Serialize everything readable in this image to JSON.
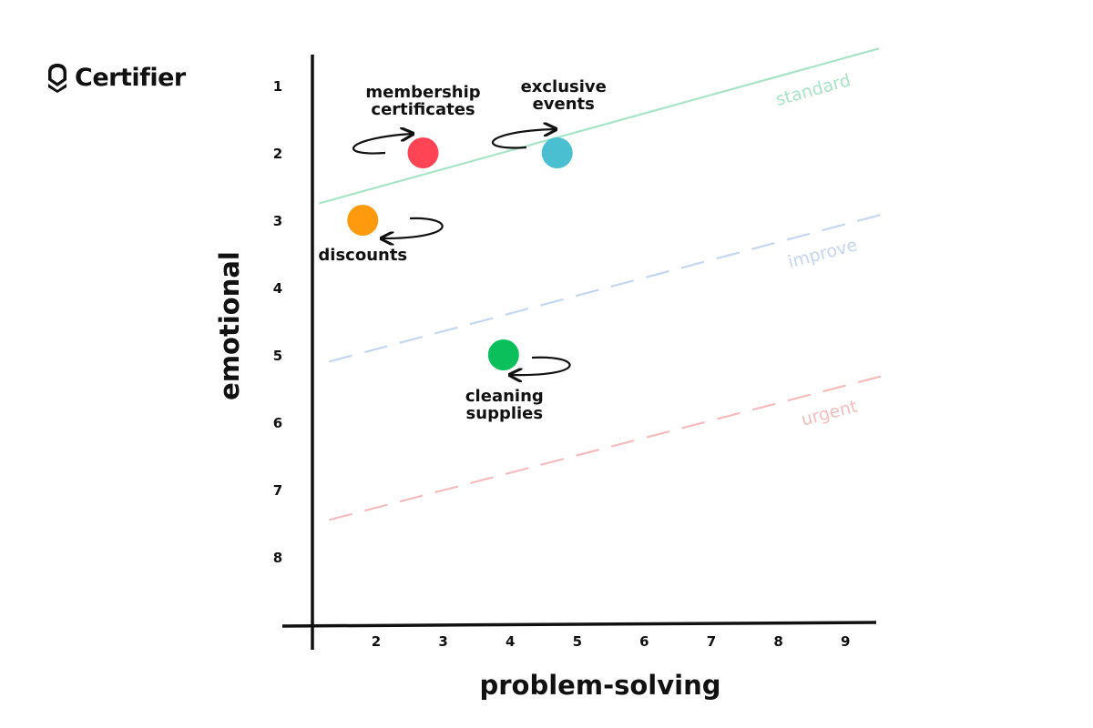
{
  "brand": {
    "name": "Certifier",
    "icon": "shield-icon"
  },
  "chart_data": {
    "type": "scatter",
    "xlabel": "problem-solving",
    "ylabel": "emotional",
    "x_ticks": [
      2,
      3,
      4,
      5,
      6,
      7,
      8,
      9
    ],
    "y_ticks": [
      1,
      2,
      3,
      4,
      5,
      6,
      7,
      8
    ],
    "y_inverted": true,
    "points": [
      {
        "label_lines": [
          "membership",
          "certificates"
        ],
        "x": 2.7,
        "y": 2,
        "color": "#ff4455"
      },
      {
        "label_lines": [
          "exclusive",
          "events"
        ],
        "x": 4.7,
        "y": 2,
        "color": "#4bbfd2"
      },
      {
        "label_lines": [
          "discounts"
        ],
        "x": 1.8,
        "y": 3,
        "color": "#ff9a0e"
      },
      {
        "label_lines": [
          "cleaning",
          "supplies"
        ],
        "x": 3.9,
        "y": 5,
        "color": "#0bbf5a"
      }
    ],
    "zones": [
      {
        "label": "standard",
        "color": "#a8e4c6",
        "style": "solid",
        "x1": 1.15,
        "y1": 2.75,
        "x2": 9.5,
        "y2": 0.45
      },
      {
        "label": "improve",
        "color": "#c4d6f0",
        "style": "dashed",
        "x1": 1.3,
        "y1": 5.1,
        "x2": 9.6,
        "y2": 2.9
      },
      {
        "label": "urgent",
        "color": "#f6bcbc",
        "style": "dashed",
        "x1": 1.3,
        "y1": 7.45,
        "x2": 9.6,
        "y2": 5.3
      }
    ]
  }
}
